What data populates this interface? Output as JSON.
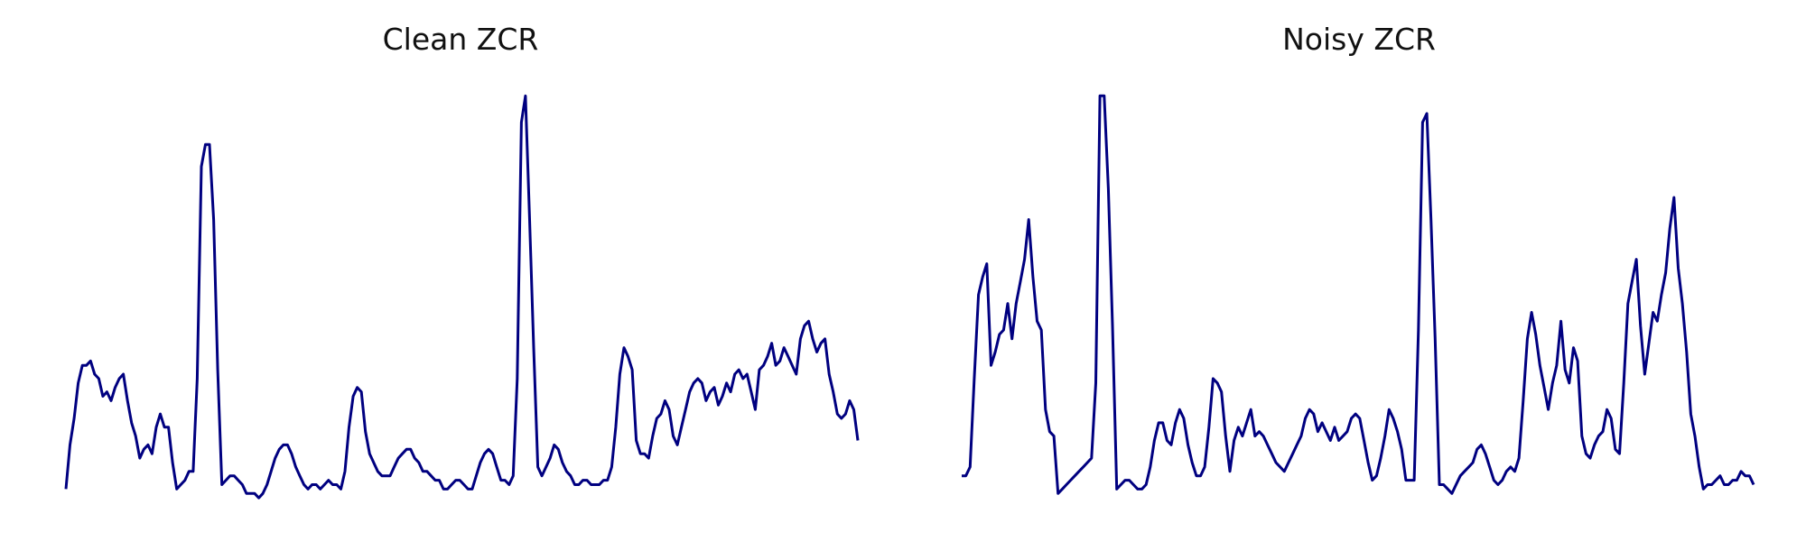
{
  "chart_data": [
    {
      "type": "line",
      "title": "Clean ZCR",
      "xlabel": "",
      "ylabel": "",
      "axes_visible": false,
      "grid": false,
      "ylim": [
        0,
        1
      ],
      "series": [
        {
          "color": "#000080",
          "values": [
            0.04,
            0.14,
            0.2,
            0.28,
            0.32,
            0.32,
            0.33,
            0.3,
            0.29,
            0.25,
            0.26,
            0.24,
            0.27,
            0.29,
            0.3,
            0.24,
            0.19,
            0.16,
            0.11,
            0.13,
            0.14,
            0.12,
            0.18,
            0.21,
            0.18,
            0.18,
            0.1,
            0.04,
            0.05,
            0.06,
            0.08,
            0.08,
            0.29,
            0.77,
            0.82,
            0.82,
            0.65,
            0.31,
            0.05,
            0.06,
            0.07,
            0.07,
            0.06,
            0.05,
            0.03,
            0.03,
            0.03,
            0.02,
            0.03,
            0.05,
            0.08,
            0.11,
            0.13,
            0.14,
            0.14,
            0.12,
            0.09,
            0.07,
            0.05,
            0.04,
            0.05,
            0.05,
            0.04,
            0.05,
            0.06,
            0.05,
            0.05,
            0.04,
            0.08,
            0.18,
            0.25,
            0.27,
            0.26,
            0.17,
            0.12,
            0.1,
            0.08,
            0.07,
            0.07,
            0.07,
            0.09,
            0.11,
            0.12,
            0.13,
            0.13,
            0.11,
            0.1,
            0.08,
            0.08,
            0.07,
            0.06,
            0.06,
            0.04,
            0.04,
            0.05,
            0.06,
            0.06,
            0.05,
            0.04,
            0.04,
            0.07,
            0.1,
            0.12,
            0.13,
            0.12,
            0.09,
            0.06,
            0.06,
            0.05,
            0.07,
            0.29,
            0.87,
            0.93,
            0.65,
            0.36,
            0.09,
            0.07,
            0.09,
            0.11,
            0.14,
            0.13,
            0.1,
            0.08,
            0.07,
            0.05,
            0.05,
            0.06,
            0.06,
            0.05,
            0.05,
            0.05,
            0.06,
            0.06,
            0.09,
            0.18,
            0.3,
            0.36,
            0.34,
            0.31,
            0.15,
            0.12,
            0.12,
            0.11,
            0.16,
            0.2,
            0.21,
            0.24,
            0.22,
            0.16,
            0.14,
            0.18,
            0.22,
            0.26,
            0.28,
            0.29,
            0.28,
            0.24,
            0.26,
            0.27,
            0.23,
            0.25,
            0.28,
            0.26,
            0.3,
            0.31,
            0.29,
            0.3,
            0.26,
            0.22,
            0.31,
            0.32,
            0.34,
            0.37,
            0.32,
            0.33,
            0.36,
            0.34,
            0.32,
            0.3,
            0.38,
            0.41,
            0.42,
            0.38,
            0.35,
            0.37,
            0.38,
            0.3,
            0.26,
            0.21,
            0.2,
            0.21,
            0.24,
            0.22,
            0.15
          ]
        }
      ]
    },
    {
      "type": "line",
      "title": "Noisy ZCR",
      "xlabel": "",
      "ylabel": "",
      "axes_visible": false,
      "grid": false,
      "ylim": [
        0,
        1
      ],
      "series": [
        {
          "color": "#000080",
          "values": [
            0.07,
            0.07,
            0.09,
            0.29,
            0.48,
            0.52,
            0.55,
            0.32,
            0.35,
            0.39,
            0.4,
            0.46,
            0.38,
            0.46,
            0.51,
            0.56,
            0.65,
            0.52,
            0.42,
            0.4,
            0.22,
            0.17,
            0.16,
            0.03,
            0.04,
            0.05,
            0.06,
            0.07,
            0.08,
            0.09,
            0.1,
            0.11,
            0.28,
            0.93,
            0.93,
            0.72,
            0.41,
            0.04,
            0.05,
            0.06,
            0.06,
            0.05,
            0.04,
            0.04,
            0.05,
            0.09,
            0.15,
            0.19,
            0.19,
            0.15,
            0.14,
            0.19,
            0.22,
            0.2,
            0.14,
            0.1,
            0.07,
            0.07,
            0.09,
            0.18,
            0.29,
            0.28,
            0.26,
            0.16,
            0.08,
            0.15,
            0.18,
            0.16,
            0.19,
            0.22,
            0.16,
            0.17,
            0.16,
            0.14,
            0.12,
            0.1,
            0.09,
            0.08,
            0.1,
            0.12,
            0.14,
            0.16,
            0.2,
            0.22,
            0.21,
            0.17,
            0.19,
            0.17,
            0.15,
            0.18,
            0.15,
            0.16,
            0.17,
            0.2,
            0.21,
            0.2,
            0.15,
            0.1,
            0.06,
            0.07,
            0.11,
            0.16,
            0.22,
            0.2,
            0.17,
            0.13,
            0.06,
            0.06,
            0.06,
            0.4,
            0.87,
            0.89,
            0.65,
            0.38,
            0.05,
            0.05,
            0.04,
            0.03,
            0.05,
            0.07,
            0.08,
            0.09,
            0.1,
            0.13,
            0.14,
            0.12,
            0.09,
            0.06,
            0.05,
            0.06,
            0.08,
            0.09,
            0.08,
            0.11,
            0.24,
            0.38,
            0.44,
            0.39,
            0.32,
            0.27,
            0.22,
            0.28,
            0.32,
            0.42,
            0.31,
            0.28,
            0.36,
            0.33,
            0.16,
            0.12,
            0.11,
            0.14,
            0.16,
            0.17,
            0.22,
            0.2,
            0.13,
            0.12,
            0.28,
            0.46,
            0.51,
            0.56,
            0.41,
            0.3,
            0.37,
            0.44,
            0.42,
            0.48,
            0.53,
            0.63,
            0.7,
            0.54,
            0.46,
            0.35,
            0.21,
            0.16,
            0.09,
            0.04,
            0.05,
            0.05,
            0.06,
            0.07,
            0.05,
            0.05,
            0.06,
            0.06,
            0.08,
            0.07,
            0.07,
            0.05
          ]
        }
      ]
    }
  ]
}
